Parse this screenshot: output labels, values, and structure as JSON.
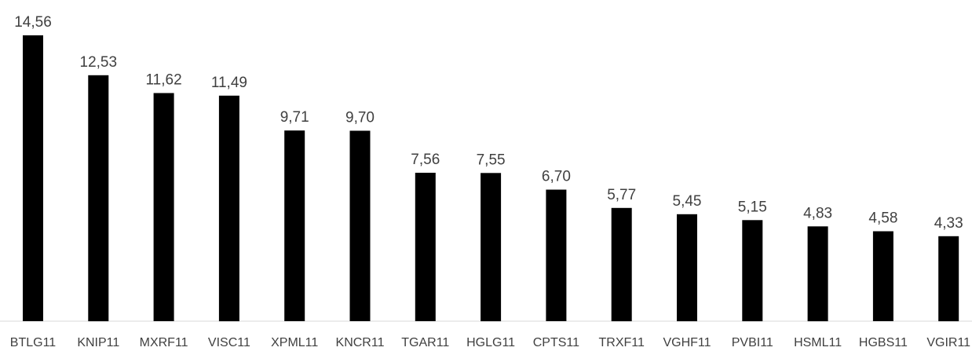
{
  "chart_data": {
    "type": "bar",
    "categories": [
      "BTLG11",
      "KNIP11",
      "MXRF11",
      "VISC11",
      "XPML11",
      "KNCR11",
      "TGAR11",
      "HGLG11",
      "CPTS11",
      "TRXF11",
      "VGHF11",
      "PVBI11",
      "HSML11",
      "HGBS11",
      "VGIR11"
    ],
    "values": [
      14.56,
      12.53,
      11.62,
      11.49,
      9.71,
      9.7,
      7.56,
      7.55,
      6.7,
      5.77,
      5.45,
      5.15,
      4.83,
      4.58,
      4.33
    ],
    "value_labels": [
      "14,56",
      "12,53",
      "11,62",
      "11,49",
      "9,71",
      "9,70",
      "7,56",
      "7,55",
      "6,70",
      "5,77",
      "5,45",
      "5,15",
      "4,83",
      "4,58",
      "4,33"
    ],
    "ylim": [
      0,
      14.56
    ],
    "grid": false,
    "legend": "none",
    "colors": {
      "bar": "#000000",
      "text": "#404040",
      "axis": "#d9d9d9"
    }
  }
}
